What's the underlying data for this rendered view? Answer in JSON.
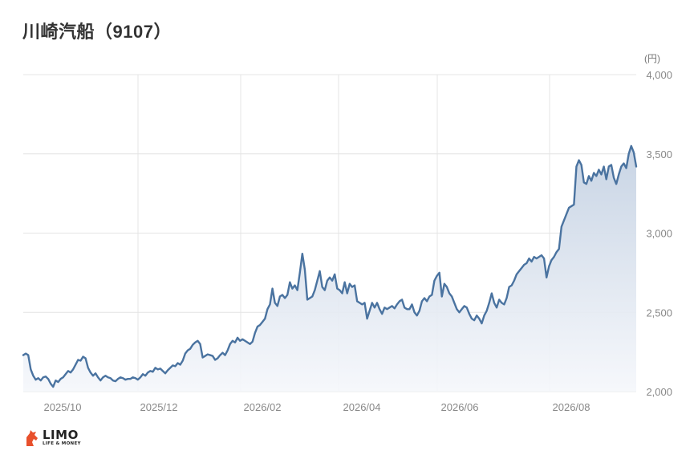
{
  "title": "川崎汽船（9107）",
  "logo": {
    "name": "LIMO",
    "tagline": "LIFE & MONEY"
  },
  "colors": {
    "line": "#4a73a0",
    "area_top": "#c5d2e3",
    "area_bottom": "#f5f7fb",
    "grid": "#e4e4e4",
    "logo_accent": "#e8502c"
  },
  "chart_data": {
    "type": "area",
    "title": "川崎汽船（9107）",
    "unit": "(円)",
    "x_ticks": [
      "2025/10",
      "2025/12",
      "2026/02",
      "2026/04",
      "2026/06",
      "2026/08"
    ],
    "y_ticks": [
      "2,000",
      "2,500",
      "3,000",
      "3,500",
      "4,000"
    ],
    "ylim": [
      2000,
      4000
    ],
    "grid": true,
    "y_axis_position": "right",
    "series": [
      {
        "values": [
          2230,
          2240,
          2230,
          2140,
          2100,
          2075,
          2085,
          2070,
          2090,
          2095,
          2080,
          2050,
          2030,
          2070,
          2060,
          2080,
          2090,
          2110,
          2130,
          2120,
          2140,
          2170,
          2200,
          2195,
          2220,
          2210,
          2150,
          2120,
          2100,
          2115,
          2090,
          2070,
          2090,
          2100,
          2090,
          2085,
          2070,
          2065,
          2080,
          2090,
          2085,
          2075,
          2080,
          2080,
          2090,
          2085,
          2075,
          2090,
          2110,
          2100,
          2120,
          2130,
          2125,
          2150,
          2140,
          2145,
          2130,
          2115,
          2135,
          2150,
          2165,
          2160,
          2180,
          2170,
          2195,
          2240,
          2260,
          2270,
          2295,
          2310,
          2320,
          2300,
          2215,
          2225,
          2235,
          2230,
          2225,
          2200,
          2210,
          2230,
          2245,
          2230,
          2260,
          2300,
          2320,
          2310,
          2340,
          2320,
          2330,
          2320,
          2310,
          2300,
          2315,
          2370,
          2410,
          2420,
          2440,
          2460,
          2520,
          2550,
          2650,
          2560,
          2540,
          2600,
          2610,
          2590,
          2610,
          2690,
          2650,
          2670,
          2640,
          2750,
          2870,
          2770,
          2580,
          2590,
          2600,
          2640,
          2700,
          2760,
          2660,
          2640,
          2700,
          2720,
          2700,
          2740,
          2650,
          2640,
          2620,
          2690,
          2620,
          2680,
          2660,
          2670,
          2570,
          2560,
          2550,
          2560,
          2460,
          2510,
          2560,
          2530,
          2560,
          2520,
          2490,
          2530,
          2520,
          2530,
          2540,
          2525,
          2550,
          2570,
          2580,
          2530,
          2520,
          2520,
          2550,
          2500,
          2480,
          2510,
          2570,
          2590,
          2570,
          2600,
          2610,
          2700,
          2730,
          2750,
          2600,
          2680,
          2660,
          2620,
          2600,
          2560,
          2520,
          2500,
          2520,
          2540,
          2530,
          2490,
          2460,
          2450,
          2480,
          2460,
          2430,
          2480,
          2510,
          2560,
          2620,
          2560,
          2530,
          2580,
          2560,
          2550,
          2590,
          2660,
          2670,
          2700,
          2740,
          2760,
          2780,
          2800,
          2810,
          2840,
          2820,
          2850,
          2840,
          2850,
          2860,
          2840,
          2720,
          2790,
          2830,
          2850,
          2880,
          2900,
          3040,
          3080,
          3120,
          3160,
          3170,
          3180,
          3420,
          3460,
          3430,
          3320,
          3310,
          3360,
          3330,
          3380,
          3360,
          3400,
          3370,
          3420,
          3340,
          3420,
          3430,
          3350,
          3310,
          3370,
          3420,
          3440,
          3410,
          3500,
          3550,
          3510,
          3420
        ]
      }
    ]
  }
}
